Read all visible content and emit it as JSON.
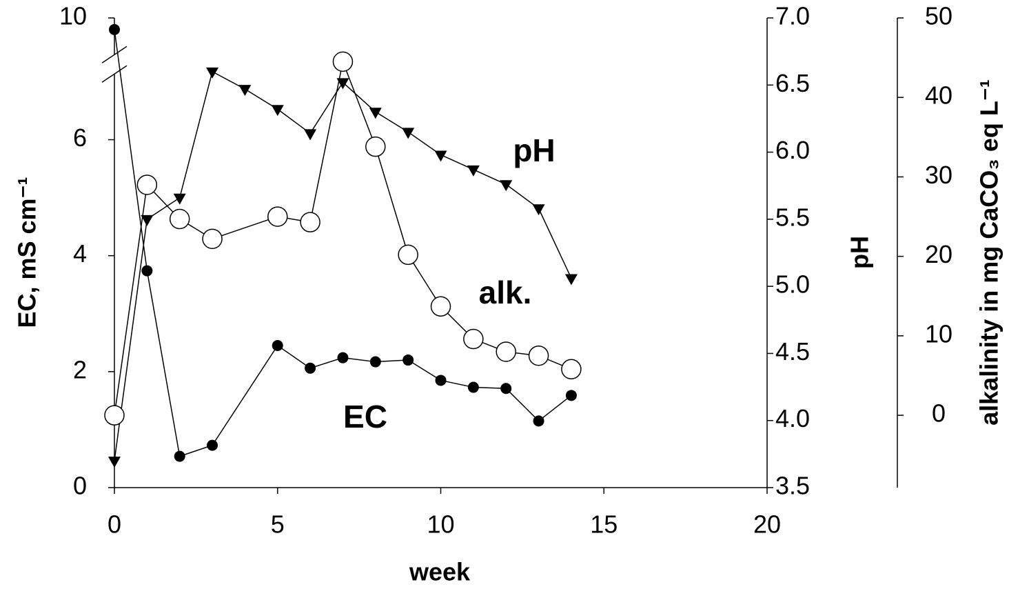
{
  "chart_data": {
    "type": "line",
    "xlabel": "week",
    "ylabel": "EC, mS cm⁻¹",
    "y2label": "pH",
    "y3label": "alkalinity in mg CaCO₃ eq L⁻¹",
    "xlim": [
      0,
      20
    ],
    "xticks": [
      0,
      5,
      10,
      15,
      20
    ],
    "ylim": [
      0,
      10
    ],
    "yticks": [
      0,
      2,
      4,
      6,
      10
    ],
    "ybreak": [
      7.3,
      9.2
    ],
    "y2lim": [
      3.5,
      7.0
    ],
    "y2ticks": [
      3.5,
      {
        "value": 4,
        "label": "4.0"
      },
      4.5,
      {
        "value": 5,
        "label": "5.0"
      },
      5.5,
      {
        "value": 6,
        "label": "6.0"
      },
      6.5,
      {
        "value": 7,
        "label": "7.0"
      }
    ],
    "y3lim": [
      -9.1,
      50
    ],
    "y3ticks": [
      0,
      10,
      20,
      30,
      40,
      50
    ],
    "series": [
      {
        "name": "EC",
        "color": "#000000",
        "marker": "circle-filled",
        "axis": "y",
        "x": [
          0,
          1,
          2,
          3,
          5,
          6,
          7,
          8,
          9,
          10,
          11,
          12,
          13,
          14
        ],
        "values": [
          9.8,
          3.74,
          0.54,
          0.73,
          2.45,
          2.06,
          2.24,
          2.17,
          2.2,
          1.85,
          1.73,
          1.71,
          1.15,
          1.59
        ]
      },
      {
        "name": "pH",
        "color": "#000000",
        "marker": "triangle-down",
        "axis": "y2",
        "x": [
          0,
          1,
          2,
          3,
          4,
          5,
          6,
          7,
          8,
          9,
          10,
          11,
          12,
          13,
          14
        ],
        "values": [
          3.7,
          5.5,
          5.66,
          6.6,
          6.47,
          6.32,
          6.14,
          6.52,
          6.3,
          6.15,
          5.98,
          5.87,
          5.76,
          5.58,
          5.06
        ]
      },
      {
        "name": "alk.",
        "color": "#000000",
        "marker": "circle-open",
        "axis": "y3",
        "x": [
          0,
          1,
          2,
          3,
          5,
          6,
          7,
          8,
          9,
          10,
          11,
          12,
          13,
          14
        ],
        "values": [
          0,
          29,
          24.7,
          22.2,
          25,
          24.3,
          44.5,
          33.8,
          20.2,
          13.7,
          9.6,
          8.0,
          7.5,
          5.8
        ]
      }
    ]
  }
}
